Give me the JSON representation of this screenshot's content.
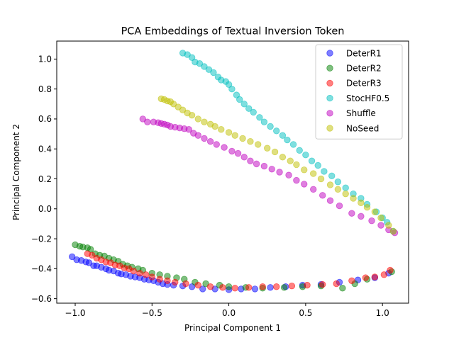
{
  "chart_data": {
    "type": "scatter",
    "title": "PCA Embeddings of Textual Inversion Token",
    "xlabel": "Principal Component 1",
    "ylabel": "Principal Component 2",
    "xlim": [
      -1.12,
      1.17
    ],
    "ylim": [
      -0.63,
      1.12
    ],
    "xticks": [
      -1.0,
      -0.5,
      0.0,
      0.5,
      1.0
    ],
    "xtick_labels": [
      "−1.0",
      "−0.5",
      "0.0",
      "0.5",
      "1.0"
    ],
    "yticks": [
      -0.6,
      -0.4,
      -0.2,
      0.0,
      0.2,
      0.4,
      0.6,
      0.8,
      1.0
    ],
    "ytick_labels": [
      "−0.6",
      "−0.4",
      "−0.2",
      "0.0",
      "0.2",
      "0.4",
      "0.6",
      "0.8",
      "1.0"
    ],
    "grid": false,
    "legend_position": "top-right",
    "series": [
      {
        "name": "DeterR1",
        "color": "#0000ff",
        "points": [
          [
            -1.02,
            -0.32
          ],
          [
            -0.99,
            -0.34
          ],
          [
            -0.96,
            -0.345
          ],
          [
            -0.93,
            -0.355
          ],
          [
            -0.91,
            -0.36
          ],
          [
            -0.88,
            -0.38
          ],
          [
            -0.86,
            -0.38
          ],
          [
            -0.83,
            -0.39
          ],
          [
            -0.8,
            -0.4
          ],
          [
            -0.78,
            -0.41
          ],
          [
            -0.75,
            -0.415
          ],
          [
            -0.72,
            -0.43
          ],
          [
            -0.7,
            -0.435
          ],
          [
            -0.67,
            -0.44
          ],
          [
            -0.64,
            -0.45
          ],
          [
            -0.61,
            -0.455
          ],
          [
            -0.58,
            -0.46
          ],
          [
            -0.55,
            -0.47
          ],
          [
            -0.52,
            -0.475
          ],
          [
            -0.49,
            -0.48
          ],
          [
            -0.46,
            -0.49
          ],
          [
            -0.43,
            -0.5
          ],
          [
            -0.4,
            -0.505
          ],
          [
            -0.36,
            -0.51
          ],
          [
            -0.3,
            -0.515
          ],
          [
            -0.24,
            -0.52
          ],
          [
            -0.17,
            -0.535
          ],
          [
            -0.09,
            -0.535
          ],
          [
            0.0,
            -0.54
          ],
          [
            0.08,
            -0.535
          ],
          [
            0.17,
            -0.535
          ],
          [
            0.27,
            -0.525
          ],
          [
            0.37,
            -0.52
          ],
          [
            0.48,
            -0.51
          ],
          [
            0.6,
            -0.505
          ],
          [
            0.72,
            -0.49
          ],
          [
            0.84,
            -0.475
          ],
          [
            0.95,
            -0.46
          ],
          [
            1.04,
            -0.43
          ]
        ]
      },
      {
        "name": "DeterR2",
        "color": "#008000",
        "points": [
          [
            -1.0,
            -0.24
          ],
          [
            -0.97,
            -0.25
          ],
          [
            -0.95,
            -0.255
          ],
          [
            -0.92,
            -0.26
          ],
          [
            -0.9,
            -0.27
          ],
          [
            -0.87,
            -0.3
          ],
          [
            -0.84,
            -0.31
          ],
          [
            -0.81,
            -0.315
          ],
          [
            -0.78,
            -0.33
          ],
          [
            -0.75,
            -0.34
          ],
          [
            -0.72,
            -0.35
          ],
          [
            -0.69,
            -0.37
          ],
          [
            -0.66,
            -0.38
          ],
          [
            -0.63,
            -0.39
          ],
          [
            -0.59,
            -0.4
          ],
          [
            -0.56,
            -0.41
          ],
          [
            -0.5,
            -0.43
          ],
          [
            -0.45,
            -0.44
          ],
          [
            -0.4,
            -0.45
          ],
          [
            -0.34,
            -0.46
          ],
          [
            -0.29,
            -0.47
          ],
          [
            -0.22,
            -0.49
          ],
          [
            -0.15,
            -0.5
          ],
          [
            -0.06,
            -0.51
          ],
          [
            0.0,
            -0.52
          ],
          [
            0.11,
            -0.525
          ],
          [
            0.22,
            -0.53
          ],
          [
            0.36,
            -0.525
          ],
          [
            0.48,
            -0.52
          ],
          [
            0.6,
            -0.515
          ],
          [
            0.74,
            -0.53
          ],
          [
            0.82,
            -0.5
          ],
          [
            0.9,
            -0.47
          ],
          [
            1.06,
            -0.42
          ]
        ]
      },
      {
        "name": "DeterR3",
        "color": "#ff0000",
        "points": [
          [
            -0.92,
            -0.3
          ],
          [
            -0.89,
            -0.31
          ],
          [
            -0.86,
            -0.33
          ],
          [
            -0.83,
            -0.34
          ],
          [
            -0.8,
            -0.355
          ],
          [
            -0.77,
            -0.36
          ],
          [
            -0.74,
            -0.375
          ],
          [
            -0.71,
            -0.38
          ],
          [
            -0.68,
            -0.395
          ],
          [
            -0.65,
            -0.4
          ],
          [
            -0.62,
            -0.415
          ],
          [
            -0.58,
            -0.43
          ],
          [
            -0.54,
            -0.44
          ],
          [
            -0.5,
            -0.455
          ],
          [
            -0.45,
            -0.47
          ],
          [
            -0.4,
            -0.48
          ],
          [
            -0.35,
            -0.49
          ],
          [
            -0.28,
            -0.5
          ],
          [
            -0.2,
            -0.51
          ],
          [
            -0.12,
            -0.52
          ],
          [
            -0.04,
            -0.525
          ],
          [
            0.04,
            -0.53
          ],
          [
            0.13,
            -0.525
          ],
          [
            0.22,
            -0.52
          ],
          [
            0.31,
            -0.52
          ],
          [
            0.41,
            -0.515
          ],
          [
            0.51,
            -0.51
          ],
          [
            0.61,
            -0.505
          ],
          [
            0.7,
            -0.5
          ],
          [
            0.8,
            -0.48
          ],
          [
            0.89,
            -0.46
          ],
          [
            0.95,
            -0.455
          ],
          [
            1.01,
            -0.44
          ],
          [
            1.05,
            -0.41
          ]
        ]
      },
      {
        "name": "StocHF0.5",
        "color": "#00bfbf",
        "points": [
          [
            -0.3,
            1.04
          ],
          [
            -0.27,
            1.03
          ],
          [
            -0.24,
            1.01
          ],
          [
            -0.22,
            0.98
          ],
          [
            -0.19,
            0.97
          ],
          [
            -0.16,
            0.95
          ],
          [
            -0.13,
            0.93
          ],
          [
            -0.1,
            0.91
          ],
          [
            -0.07,
            0.88
          ],
          [
            -0.05,
            0.86
          ],
          [
            -0.02,
            0.85
          ],
          [
            0.0,
            0.83
          ],
          [
            0.02,
            0.8
          ],
          [
            0.05,
            0.76
          ],
          [
            0.07,
            0.73
          ],
          [
            0.1,
            0.7
          ],
          [
            0.13,
            0.67
          ],
          [
            0.16,
            0.645
          ],
          [
            0.2,
            0.61
          ],
          [
            0.23,
            0.58
          ],
          [
            0.27,
            0.55
          ],
          [
            0.31,
            0.52
          ],
          [
            0.35,
            0.49
          ],
          [
            0.38,
            0.46
          ],
          [
            0.42,
            0.43
          ],
          [
            0.46,
            0.39
          ],
          [
            0.5,
            0.36
          ],
          [
            0.54,
            0.32
          ],
          [
            0.58,
            0.29
          ],
          [
            0.62,
            0.25
          ],
          [
            0.67,
            0.22
          ],
          [
            0.71,
            0.18
          ],
          [
            0.76,
            0.14
          ],
          [
            0.81,
            0.1
          ],
          [
            0.86,
            0.07
          ],
          [
            0.9,
            0.03
          ],
          [
            0.96,
            -0.02
          ],
          [
            1.0,
            -0.06
          ],
          [
            1.03,
            -0.09
          ],
          [
            1.07,
            -0.15
          ]
        ]
      },
      {
        "name": "Shuffle",
        "color": "#bf00bf",
        "points": [
          [
            -0.56,
            0.6
          ],
          [
            -0.53,
            0.58
          ],
          [
            -0.49,
            0.58
          ],
          [
            -0.46,
            0.575
          ],
          [
            -0.44,
            0.57
          ],
          [
            -0.42,
            0.565
          ],
          [
            -0.4,
            0.56
          ],
          [
            -0.38,
            0.55
          ],
          [
            -0.35,
            0.545
          ],
          [
            -0.32,
            0.54
          ],
          [
            -0.29,
            0.535
          ],
          [
            -0.26,
            0.53
          ],
          [
            -0.23,
            0.505
          ],
          [
            -0.2,
            0.49
          ],
          [
            -0.16,
            0.47
          ],
          [
            -0.12,
            0.45
          ],
          [
            -0.08,
            0.43
          ],
          [
            -0.03,
            0.41
          ],
          [
            0.02,
            0.385
          ],
          [
            0.06,
            0.37
          ],
          [
            0.1,
            0.345
          ],
          [
            0.14,
            0.32
          ],
          [
            0.18,
            0.3
          ],
          [
            0.23,
            0.285
          ],
          [
            0.28,
            0.265
          ],
          [
            0.33,
            0.245
          ],
          [
            0.39,
            0.225
          ],
          [
            0.44,
            0.19
          ],
          [
            0.49,
            0.165
          ],
          [
            0.55,
            0.13
          ],
          [
            0.61,
            0.09
          ],
          [
            0.66,
            0.055
          ],
          [
            0.72,
            0.02
          ],
          [
            0.8,
            -0.03
          ],
          [
            0.86,
            -0.05
          ],
          [
            0.93,
            -0.08
          ],
          [
            0.99,
            -0.11
          ],
          [
            1.04,
            -0.14
          ],
          [
            1.08,
            -0.16
          ]
        ]
      },
      {
        "name": "NoSeed",
        "color": "#bfbf00",
        "points": [
          [
            -0.44,
            0.735
          ],
          [
            -0.42,
            0.73
          ],
          [
            -0.4,
            0.72
          ],
          [
            -0.38,
            0.715
          ],
          [
            -0.36,
            0.7
          ],
          [
            -0.33,
            0.68
          ],
          [
            -0.3,
            0.66
          ],
          [
            -0.27,
            0.64
          ],
          [
            -0.24,
            0.625
          ],
          [
            -0.2,
            0.6
          ],
          [
            -0.16,
            0.58
          ],
          [
            -0.12,
            0.565
          ],
          [
            -0.09,
            0.55
          ],
          [
            -0.05,
            0.53
          ],
          [
            0.0,
            0.51
          ],
          [
            0.04,
            0.49
          ],
          [
            0.09,
            0.47
          ],
          [
            0.14,
            0.45
          ],
          [
            0.19,
            0.43
          ],
          [
            0.25,
            0.405
          ],
          [
            0.3,
            0.38
          ],
          [
            0.35,
            0.345
          ],
          [
            0.4,
            0.32
          ],
          [
            0.44,
            0.295
          ],
          [
            0.49,
            0.26
          ],
          [
            0.55,
            0.235
          ],
          [
            0.6,
            0.2
          ],
          [
            0.66,
            0.16
          ],
          [
            0.71,
            0.13
          ],
          [
            0.76,
            0.1
          ],
          [
            0.81,
            0.07
          ],
          [
            0.86,
            0.04
          ],
          [
            0.9,
            0.01
          ],
          [
            0.95,
            -0.02
          ],
          [
            0.99,
            -0.06
          ],
          [
            1.04,
            -0.11
          ],
          [
            1.07,
            -0.15
          ]
        ]
      }
    ]
  }
}
